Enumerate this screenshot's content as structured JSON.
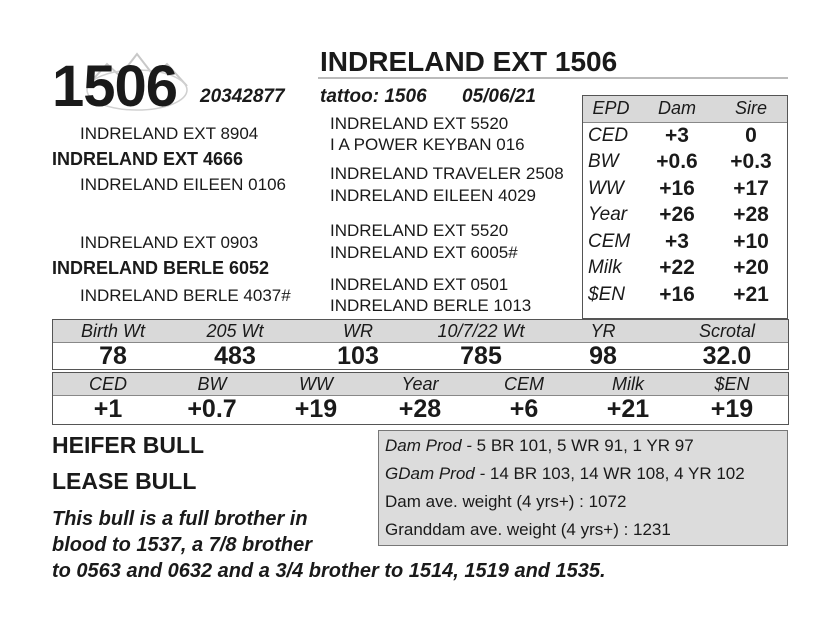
{
  "header": {
    "lot_number": "1506",
    "registration": "20342877",
    "name": "INDRELAND EXT 1506",
    "tattoo": "tattoo: 1506",
    "birth_date": "05/06/21"
  },
  "pedigree": {
    "sire": "INDRELAND EXT 4666",
    "sire_sire": "INDRELAND EXT 8904",
    "sire_dam": "INDRELAND EILEEN 0106",
    "dam": "INDRELAND BERLE 6052",
    "dam_sire": "INDRELAND EXT 0903",
    "dam_dam": "INDRELAND BERLE 4037#",
    "ss_sire": "INDRELAND EXT 5520",
    "ss_dam": "I A POWER KEYBAN 016",
    "sd_sire": "INDRELAND TRAVELER 2508",
    "sd_dam": "INDRELAND EILEEN 4029",
    "ds_sire": "INDRELAND EXT 5520",
    "ds_dam": "INDRELAND EXT 6005#",
    "dd_sire": "INDRELAND EXT 0501",
    "dd_dam": "INDRELAND BERLE 1013"
  },
  "parent_epd": {
    "headers": [
      "EPD",
      "Dam",
      "Sire"
    ],
    "rows": [
      {
        "label": "CED",
        "dam": "+3",
        "sire": "0"
      },
      {
        "label": "BW",
        "dam": "+0.6",
        "sire": "+0.3"
      },
      {
        "label": "WW",
        "dam": "+16",
        "sire": "+17"
      },
      {
        "label": "Year",
        "dam": "+26",
        "sire": "+28"
      },
      {
        "label": "CEM",
        "dam": "+3",
        "sire": "+10"
      },
      {
        "label": "Milk",
        "dam": "+22",
        "sire": "+20"
      },
      {
        "label": "$EN",
        "dam": "+16",
        "sire": "+21"
      }
    ]
  },
  "performance": {
    "headers": [
      "Birth Wt",
      "205 Wt",
      "WR",
      "10/7/22 Wt",
      "YR",
      "Scrotal"
    ],
    "values": [
      "78",
      "483",
      "103",
      "785",
      "98",
      "32.0"
    ]
  },
  "epd": {
    "headers": [
      "CED",
      "BW",
      "WW",
      "Year",
      "CEM",
      "Milk",
      "$EN"
    ],
    "values": [
      "+1",
      "+0.7",
      "+19",
      "+28",
      "+6",
      "+21",
      "+19"
    ]
  },
  "status": {
    "line1": "HEIFER BULL",
    "line2": "LEASE BULL"
  },
  "notes": [
    "This bull is a full brother in",
    "blood to 1537, a 7/8 brother",
    "to 0563 and 0632 and a 3/4 brother to 1514, 1519 and 1535."
  ],
  "production": {
    "dam_prod_label": "Dam Prod -",
    "dam_prod_value": " 5 BR 101, 5 WR 91, 1 YR 97",
    "gdam_prod_label": "GDam Prod -",
    "gdam_prod_value": " 14 BR 103, 14 WR 108, 4 YR 102",
    "dam_weight": "Dam ave. weight (4 yrs+) : 1072",
    "gdam_weight": "Granddam ave. weight (4 yrs+) : 1231"
  },
  "colors": {
    "header_fill": "#d9d9d9",
    "prod_fill": "#dcdcdc",
    "text": "#1a1a1a"
  }
}
